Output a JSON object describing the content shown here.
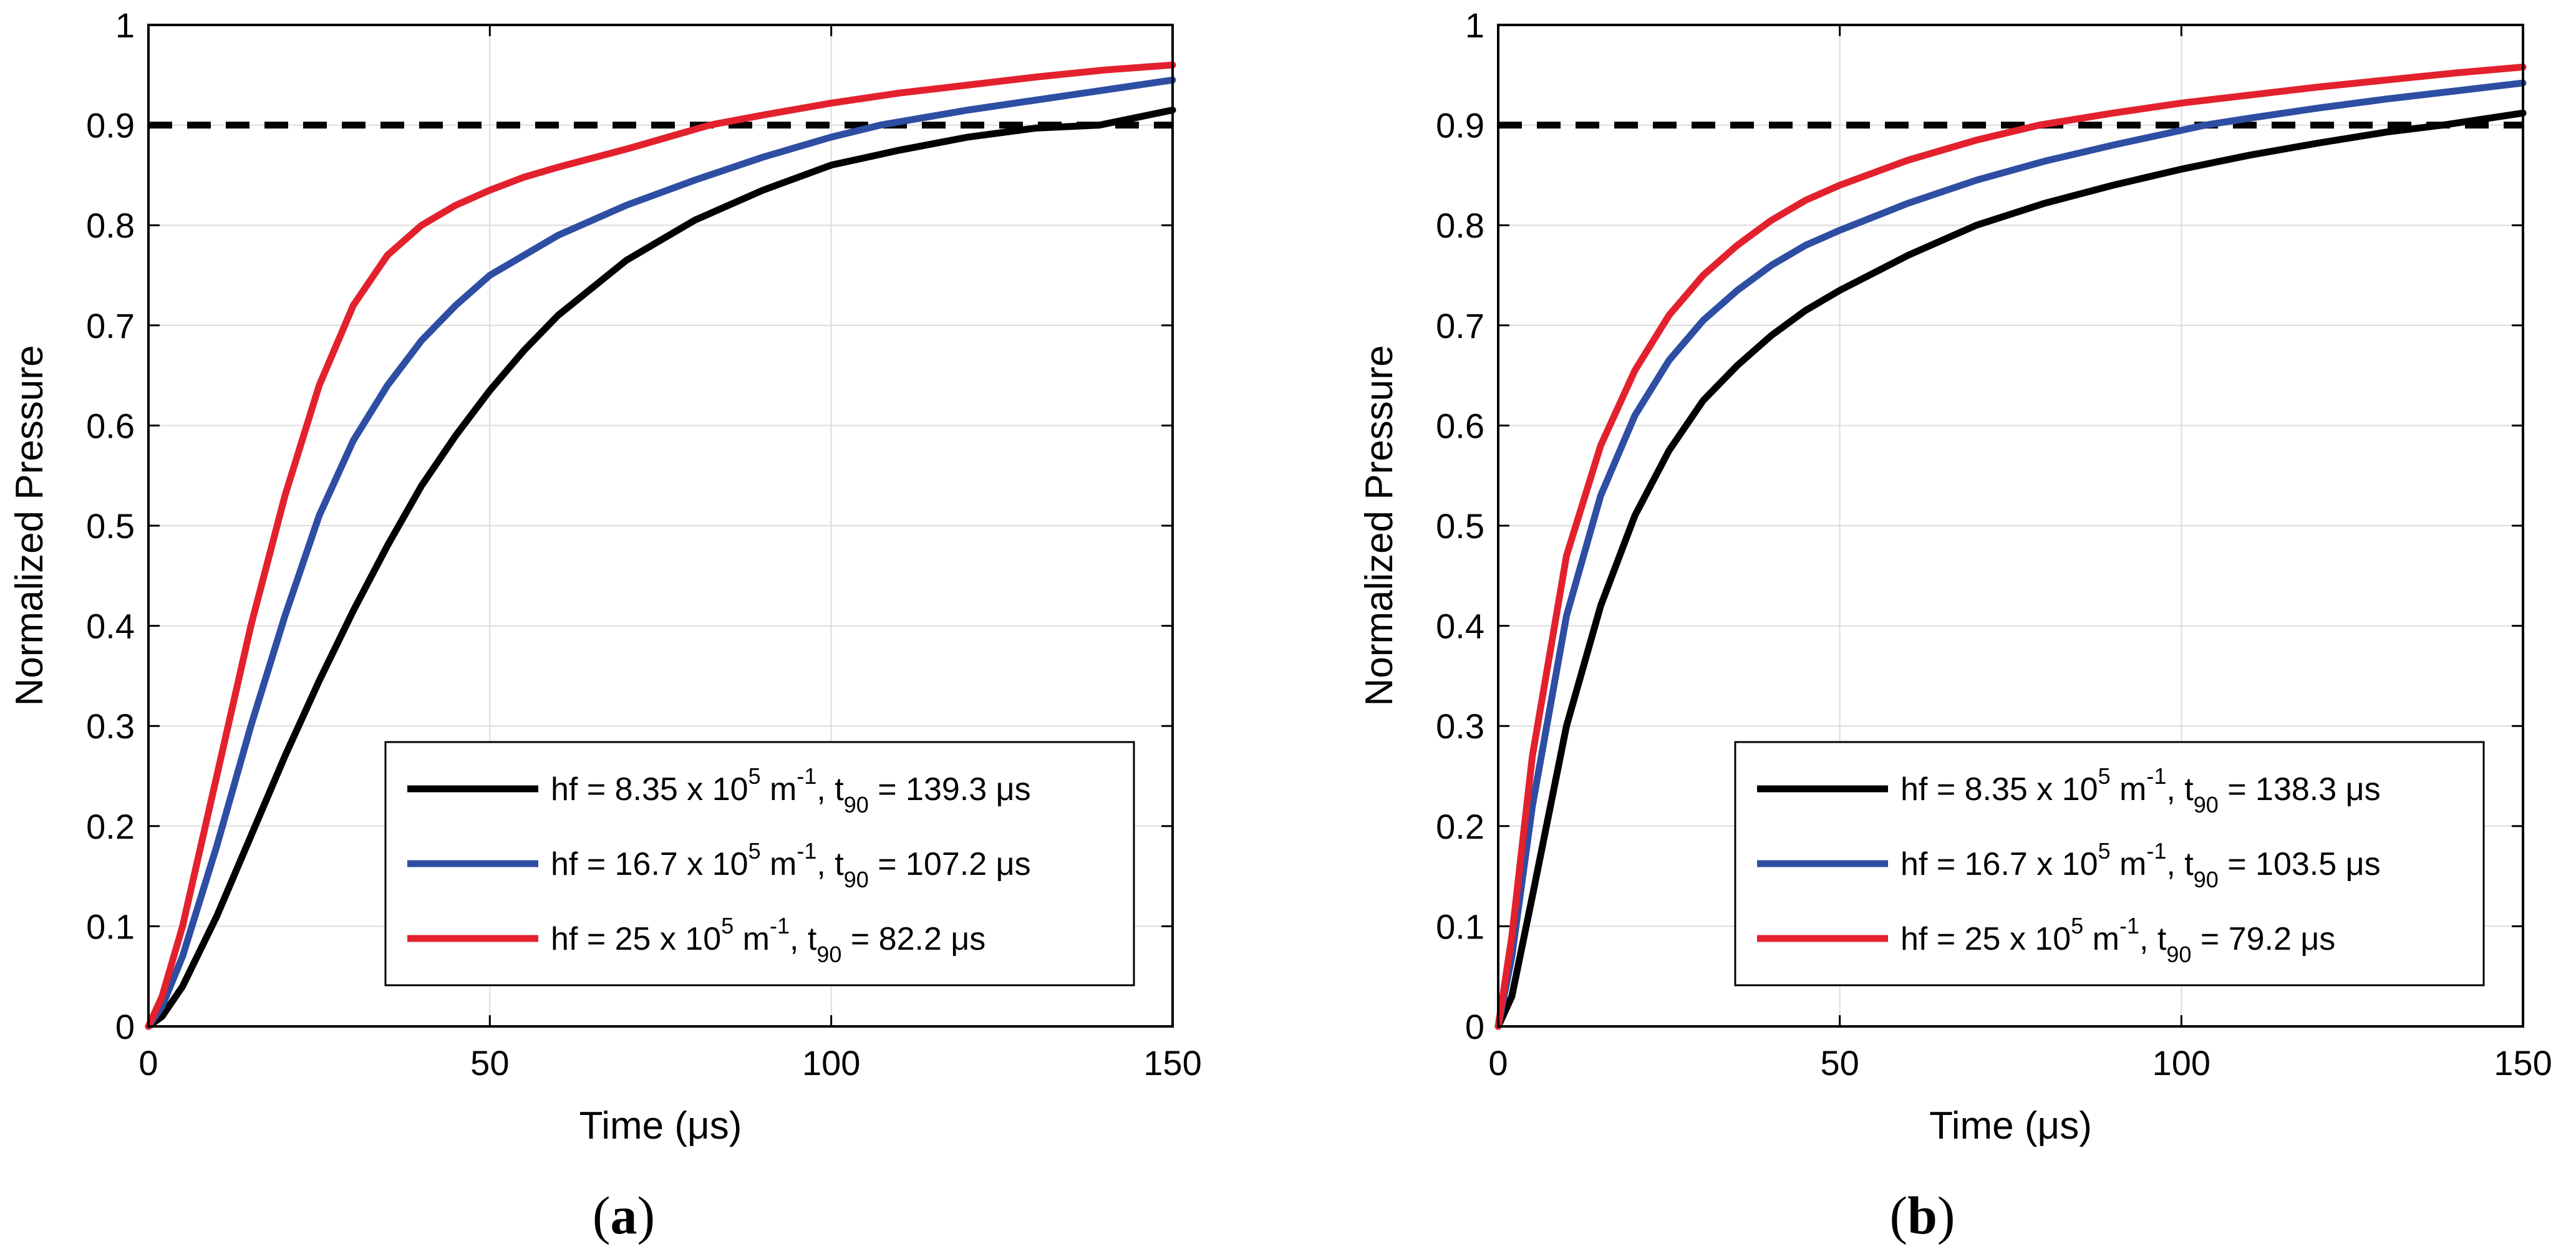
{
  "chart_data": [
    {
      "type": "line",
      "panel_label": "a",
      "xlabel": "Time (μs)",
      "ylabel": "Normalized Pressure",
      "xlim": [
        0,
        150
      ],
      "ylim": [
        0,
        1
      ],
      "xticks": [
        0,
        50,
        100,
        150
      ],
      "yticks": [
        0,
        0.1,
        0.2,
        0.3,
        0.4,
        0.5,
        0.6,
        0.7,
        0.8,
        0.9,
        1
      ],
      "xtick_labels": [
        "0",
        "50",
        "100",
        "150"
      ],
      "ytick_labels": [
        "0",
        "0.1",
        "0.2",
        "0.3",
        "0.4",
        "0.5",
        "0.6",
        "0.7",
        "0.8",
        "0.9",
        "1"
      ],
      "grid": true,
      "reference_line": {
        "y": 0.9,
        "style": "dashed",
        "color": "#000000"
      },
      "legend_position": "bottom-right",
      "series": [
        {
          "name": "hf = 8.35 x 10^5 m^-1, t_90 = 139.3 μs",
          "label": {
            "pre": "hf = 8.35 x 10",
            "exp": "5",
            "mid": " m",
            "exp2": "-1",
            "mid2": ", t",
            "sub": "90",
            "post": " = 139.3 μs"
          },
          "color": "#000000",
          "x": [
            0,
            2,
            5,
            10,
            15,
            20,
            25,
            30,
            35,
            40,
            45,
            50,
            55,
            60,
            70,
            80,
            90,
            100,
            110,
            120,
            130,
            139.3,
            150
          ],
          "y": [
            0,
            0.01,
            0.04,
            0.11,
            0.19,
            0.27,
            0.345,
            0.415,
            0.48,
            0.54,
            0.59,
            0.635,
            0.675,
            0.71,
            0.765,
            0.805,
            0.835,
            0.86,
            0.875,
            0.888,
            0.897,
            0.9,
            0.915
          ]
        },
        {
          "name": "hf = 16.7 x 10^5 m^-1, t_90 = 107.2 μs",
          "label": {
            "pre": "hf = 16.7 x 10",
            "exp": "5",
            "mid": " m",
            "exp2": "-1",
            "mid2": ", t",
            "sub": "90",
            "post": " = 107.2 μs"
          },
          "color": "#2e4ea3",
          "x": [
            0,
            2,
            5,
            10,
            15,
            20,
            25,
            30,
            35,
            40,
            45,
            50,
            55,
            60,
            70,
            80,
            90,
            100,
            107.2,
            120,
            130,
            140,
            150
          ],
          "y": [
            0,
            0.02,
            0.07,
            0.18,
            0.3,
            0.41,
            0.51,
            0.585,
            0.64,
            0.685,
            0.72,
            0.75,
            0.77,
            0.79,
            0.82,
            0.845,
            0.868,
            0.888,
            0.9,
            0.915,
            0.925,
            0.935,
            0.945
          ]
        },
        {
          "name": "hf = 25 x 10^5 m^-1, t_90 = 82.2 μs",
          "label": {
            "pre": "hf = 25 x 10",
            "exp": "5",
            "mid": " m",
            "exp2": "-1",
            "mid2": ", t",
            "sub": "90",
            "post": " = 82.2 μs"
          },
          "color": "#e3212d",
          "x": [
            0,
            2,
            5,
            10,
            15,
            20,
            25,
            30,
            35,
            40,
            45,
            50,
            55,
            60,
            70,
            82.2,
            90,
            100,
            110,
            120,
            130,
            140,
            150
          ],
          "y": [
            0,
            0.03,
            0.1,
            0.25,
            0.4,
            0.53,
            0.64,
            0.72,
            0.77,
            0.8,
            0.82,
            0.835,
            0.848,
            0.858,
            0.876,
            0.9,
            0.91,
            0.922,
            0.932,
            0.94,
            0.948,
            0.955,
            0.96
          ]
        }
      ]
    },
    {
      "type": "line",
      "panel_label": "b",
      "xlabel": "Time (μs)",
      "ylabel": "Normalized Pressure",
      "xlim": [
        0,
        150
      ],
      "ylim": [
        0,
        1
      ],
      "xticks": [
        0,
        50,
        100,
        150
      ],
      "yticks": [
        0,
        0.1,
        0.2,
        0.3,
        0.4,
        0.5,
        0.6,
        0.7,
        0.8,
        0.9,
        1
      ],
      "xtick_labels": [
        "0",
        "50",
        "100",
        "150"
      ],
      "ytick_labels": [
        "0",
        "0.1",
        "0.2",
        "0.3",
        "0.4",
        "0.5",
        "0.6",
        "0.7",
        "0.8",
        "0.9",
        "1"
      ],
      "grid": true,
      "reference_line": {
        "y": 0.9,
        "style": "dashed",
        "color": "#000000"
      },
      "legend_position": "bottom-right",
      "series": [
        {
          "name": "hf = 8.35 x 10^5 m^-1, t_90 = 138.3 μs",
          "label": {
            "pre": "hf = 8.35 x 10",
            "exp": "5",
            "mid": " m",
            "exp2": "-1",
            "mid2": ", t",
            "sub": "90",
            "post": " = 138.3 μs"
          },
          "color": "#000000",
          "x": [
            0,
            2,
            5,
            10,
            15,
            20,
            25,
            30,
            35,
            40,
            45,
            50,
            60,
            70,
            80,
            90,
            100,
            110,
            120,
            130,
            138.3,
            150
          ],
          "y": [
            0,
            0.03,
            0.13,
            0.3,
            0.42,
            0.51,
            0.575,
            0.625,
            0.66,
            0.69,
            0.715,
            0.735,
            0.77,
            0.8,
            0.822,
            0.84,
            0.856,
            0.87,
            0.882,
            0.893,
            0.9,
            0.912
          ]
        },
        {
          "name": "hf = 16.7 x 10^5 m^-1, t_90 = 103.5 μs",
          "label": {
            "pre": "hf = 16.7 x 10",
            "exp": "5",
            "mid": " m",
            "exp2": "-1",
            "mid2": ", t",
            "sub": "90",
            "post": " = 103.5 μs"
          },
          "color": "#2e4ea3",
          "x": [
            0,
            2,
            5,
            10,
            15,
            20,
            25,
            30,
            35,
            40,
            45,
            50,
            60,
            70,
            80,
            90,
            103.5,
            110,
            120,
            130,
            140,
            150
          ],
          "y": [
            0,
            0.07,
            0.22,
            0.41,
            0.53,
            0.61,
            0.665,
            0.705,
            0.735,
            0.76,
            0.78,
            0.795,
            0.822,
            0.845,
            0.864,
            0.88,
            0.9,
            0.907,
            0.917,
            0.926,
            0.934,
            0.942
          ]
        },
        {
          "name": "hf = 25 x 10^5 m^-1, t_90 = 79.2 μs",
          "label": {
            "pre": "hf = 25 x 10",
            "exp": "5",
            "mid": " m",
            "exp2": "-1",
            "mid2": ", t",
            "sub": "90",
            "post": " = 79.2 μs"
          },
          "color": "#e3212d",
          "x": [
            0,
            2,
            5,
            10,
            15,
            20,
            25,
            30,
            35,
            40,
            45,
            50,
            60,
            70,
            79.2,
            90,
            100,
            110,
            120,
            130,
            140,
            150
          ],
          "y": [
            0,
            0.09,
            0.27,
            0.47,
            0.58,
            0.655,
            0.71,
            0.75,
            0.78,
            0.805,
            0.825,
            0.84,
            0.865,
            0.885,
            0.9,
            0.912,
            0.922,
            0.93,
            0.938,
            0.945,
            0.952,
            0.958
          ]
        }
      ]
    }
  ]
}
